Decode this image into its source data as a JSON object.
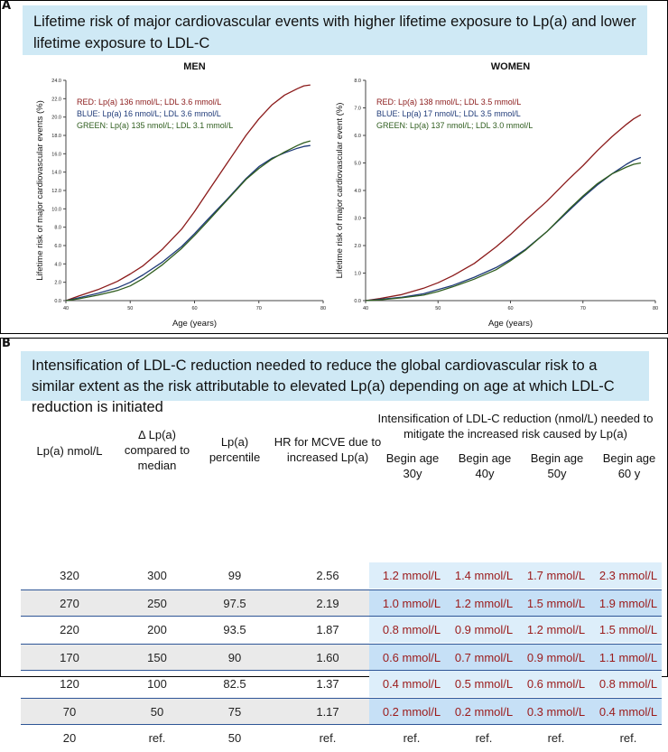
{
  "panel_a": {
    "letter": "A",
    "banner": "Lifetime risk of major cardiovascular events with higher lifetime exposure to Lp(a) and lower lifetime exposure to LDL-C"
  },
  "colors": {
    "red": "#8b1a1a",
    "blue": "#1f3a78",
    "green": "#2f5d1e",
    "banner": "#cfe9f5",
    "value_text": "#9b1b1b"
  },
  "chart_data": [
    {
      "type": "line",
      "title": "MEN",
      "xlabel": "Age (years)",
      "ylabel": "Lifetime risk of major cardiovascular events (%)",
      "xlim": [
        40,
        80
      ],
      "ylim": [
        0,
        24
      ],
      "x_ticks": [
        "40",
        "50",
        "60",
        "70",
        "80"
      ],
      "y_ticks": [
        "0.0",
        "2.0",
        "4.0",
        "6.0",
        "8.0",
        "10.0",
        "12.0",
        "14.0",
        "16.0",
        "18.0",
        "20.0",
        "22.0",
        "24.0"
      ],
      "annotations": [
        {
          "text": "RED: Lp(a) 136 nmol/L; LDL 3.6 mmol/L",
          "color": "red"
        },
        {
          "text": "BLUE: Lp(a) 16 nmol/L; LDL 3.6 mmol/L",
          "color": "blue"
        },
        {
          "text": "GREEN: Lp(a) 135 nmol/L; LDL 3.1 mmol/L",
          "color": "green"
        }
      ],
      "series": [
        {
          "color": "red",
          "x": [
            40,
            42,
            45,
            48,
            50,
            52,
            55,
            58,
            60,
            62,
            65,
            68,
            70,
            72,
            74,
            76,
            77,
            78
          ],
          "values": [
            0.0,
            0.5,
            1.2,
            2.1,
            2.9,
            3.8,
            5.6,
            7.8,
            9.7,
            11.8,
            14.9,
            18.0,
            19.8,
            21.3,
            22.4,
            23.1,
            23.4,
            23.5
          ]
        },
        {
          "color": "blue",
          "x": [
            40,
            42,
            45,
            48,
            50,
            52,
            55,
            58,
            60,
            62,
            65,
            68,
            70,
            72,
            74,
            76,
            77,
            78
          ],
          "values": [
            0.0,
            0.3,
            0.8,
            1.4,
            2.0,
            2.8,
            4.2,
            5.9,
            7.3,
            8.8,
            11.0,
            13.3,
            14.6,
            15.5,
            16.1,
            16.6,
            16.8,
            16.9
          ]
        },
        {
          "color": "green",
          "x": [
            40,
            42,
            45,
            48,
            50,
            52,
            55,
            58,
            60,
            62,
            65,
            68,
            70,
            72,
            74,
            76,
            77,
            78
          ],
          "values": [
            0.0,
            0.2,
            0.6,
            1.1,
            1.6,
            2.4,
            3.9,
            5.7,
            7.1,
            8.6,
            10.9,
            13.2,
            14.4,
            15.4,
            16.2,
            16.9,
            17.2,
            17.4
          ]
        }
      ]
    },
    {
      "type": "line",
      "title": "WOMEN",
      "xlabel": "Age (years)",
      "ylabel": "Lifetime risk of major cardiovascular event (%)",
      "xlim": [
        40,
        80
      ],
      "ylim": [
        0,
        8
      ],
      "x_ticks": [
        "40",
        "50",
        "60",
        "70",
        "80"
      ],
      "y_ticks": [
        "0.0",
        "1.0",
        "2.0",
        "3.0",
        "4.0",
        "5.0",
        "6.0",
        "7.0",
        "8.0"
      ],
      "annotations": [
        {
          "text": "RED: Lp(a) 138 nmol/L; LDL 3.5 mmol/L",
          "color": "red"
        },
        {
          "text": "BLUE: Lp(a) 17 nmol/L; LDL 3.5 mmol/L",
          "color": "blue"
        },
        {
          "text": "GREEN: Lp(a) 137 nmol/L; LDL 3.0 mmol/L",
          "color": "green"
        }
      ],
      "series": [
        {
          "color": "red",
          "x": [
            40,
            42,
            45,
            48,
            50,
            52,
            55,
            58,
            60,
            62,
            65,
            68,
            70,
            72,
            74,
            76,
            77,
            78
          ],
          "values": [
            0.0,
            0.08,
            0.22,
            0.45,
            0.65,
            0.9,
            1.35,
            1.95,
            2.4,
            2.9,
            3.6,
            4.4,
            4.9,
            5.45,
            5.95,
            6.4,
            6.6,
            6.75
          ]
        },
        {
          "color": "blue",
          "x": [
            40,
            42,
            45,
            48,
            50,
            52,
            55,
            58,
            60,
            62,
            65,
            68,
            70,
            72,
            74,
            76,
            77,
            78
          ],
          "values": [
            0.0,
            0.05,
            0.12,
            0.25,
            0.4,
            0.55,
            0.85,
            1.2,
            1.5,
            1.85,
            2.5,
            3.25,
            3.75,
            4.2,
            4.6,
            4.95,
            5.1,
            5.2
          ]
        },
        {
          "color": "green",
          "x": [
            40,
            42,
            45,
            48,
            50,
            52,
            55,
            58,
            60,
            62,
            65,
            68,
            70,
            72,
            74,
            76,
            77,
            78
          ],
          "values": [
            0.0,
            0.03,
            0.1,
            0.2,
            0.33,
            0.5,
            0.78,
            1.12,
            1.45,
            1.82,
            2.5,
            3.3,
            3.8,
            4.25,
            4.6,
            4.85,
            4.95,
            5.0
          ]
        }
      ]
    }
  ],
  "panel_b": {
    "letter": "B",
    "banner": "Intensification of LDL-C reduction needed to reduce the global cardiovascular risk to a similar extent as the risk attributable to elevated Lp(a) depending on age at which LDL-C reduction is initiated",
    "headers": {
      "lpa": "Lp(a) nmol/L",
      "delta": "Δ Lp(a) compared to median",
      "percentile": "Lp(a) percentile",
      "hr": "HR for MCVE due to increased Lp(a)",
      "group": "Intensification of LDL-C reduction (nmol/L) needed to mitigate the increased risk caused by Lp(a)",
      "age30": "Begin age 30y",
      "age40": "Begin age 40y",
      "age50": "Begin age 50y",
      "age60": "Begin age 60 y"
    },
    "rows": [
      {
        "lpa": "320",
        "delta": "300",
        "percentile": "99",
        "hr": "2.56",
        "a30": "1.2 mmol/L",
        "a40": "1.4 mmol/L",
        "a50": "1.7 mmol/L",
        "a60": "2.3 mmol/L"
      },
      {
        "lpa": "270",
        "delta": "250",
        "percentile": "97.5",
        "hr": "2.19",
        "a30": "1.0 mmol/L",
        "a40": "1.2 mmol/L",
        "a50": "1.5 mmol/L",
        "a60": "1.9 mmol/L"
      },
      {
        "lpa": "220",
        "delta": "200",
        "percentile": "93.5",
        "hr": "1.87",
        "a30": "0.8 mmol/L",
        "a40": "0.9 mmol/L",
        "a50": "1.2 mmol/L",
        "a60": "1.5 mmol/L"
      },
      {
        "lpa": "170",
        "delta": "150",
        "percentile": "90",
        "hr": "1.60",
        "a30": "0.6 mmol/L",
        "a40": "0.7 mmol/L",
        "a50": "0.9 mmol/L",
        "a60": "1.1 mmol/L"
      },
      {
        "lpa": "120",
        "delta": "100",
        "percentile": "82.5",
        "hr": "1.37",
        "a30": "0.4 mmol/L",
        "a40": "0.5 mmol/L",
        "a50": "0.6 mmol/L",
        "a60": "0.8 mmol/L"
      },
      {
        "lpa": "70",
        "delta": "50",
        "percentile": "75",
        "hr": "1.17",
        "a30": "0.2 mmol/L",
        "a40": "0.2 mmol/L",
        "a50": "0.3 mmol/L",
        "a60": "0.4 mmol/L"
      },
      {
        "lpa": "20",
        "delta": "ref.",
        "percentile": "50",
        "hr": "ref.",
        "a30": "ref.",
        "a40": "ref.",
        "a50": "ref.",
        "a60": "ref."
      }
    ]
  }
}
